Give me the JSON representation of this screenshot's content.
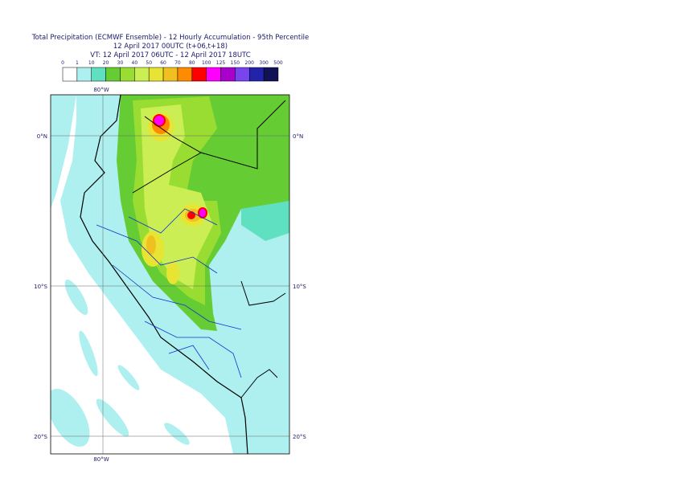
{
  "header": {
    "title": "Total Precipitation (ECMWF Ensemble) - 12 Hourly Accumulation - 95th Percentile",
    "run": "12 April 2017 00UTC (t+06,t+18)",
    "valid": "VT: 12 April 2017 06UTC - 12 April 2017 18UTC"
  },
  "legend": {
    "labels": [
      0,
      1,
      10,
      20,
      30,
      40,
      50,
      60,
      70,
      80,
      100,
      125,
      150,
      200,
      300,
      500
    ],
    "colors": [
      "#ffffff",
      "#aef0f0",
      "#5fe0c0",
      "#66cc33",
      "#99dd33",
      "#ccee55",
      "#e8e433",
      "#f0c020",
      "#ff8c00",
      "#ff0000",
      "#ff00ff",
      "#aa00cc",
      "#7744ee",
      "#2222aa",
      "#111155"
    ]
  },
  "map": {
    "meridians": [
      {
        "label": "80°W"
      }
    ],
    "parallels": [
      {
        "label": "0°N"
      },
      {
        "label": "10°S"
      },
      {
        "label": "20°S"
      }
    ]
  }
}
